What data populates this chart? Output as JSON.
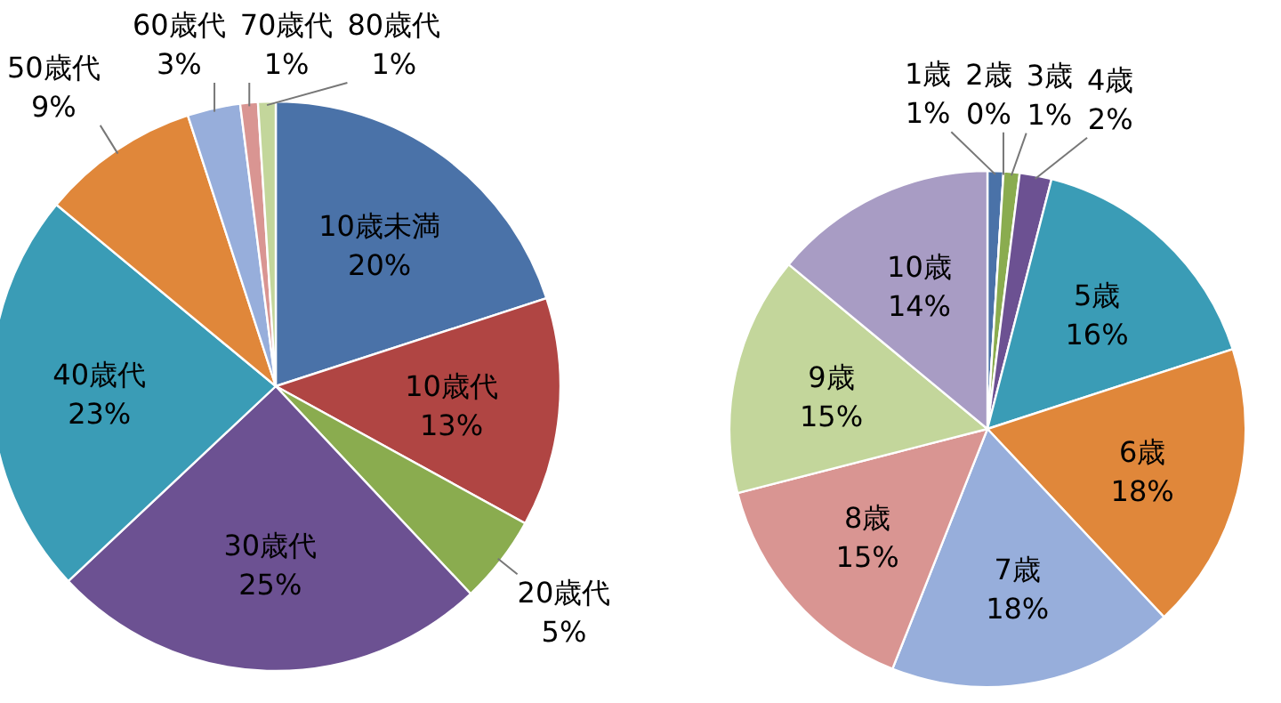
{
  "chart_data": [
    {
      "type": "pie",
      "categories": [
        "10歳未満",
        "10歳代",
        "20歳代",
        "30歳代",
        "40歳代",
        "50歳代",
        "60歳代",
        "70歳代",
        "80歳代"
      ],
      "values": [
        20,
        13,
        5,
        25,
        23,
        9,
        3,
        1,
        1
      ],
      "colors": [
        "#4a72a8",
        "#b04543",
        "#8aac4f",
        "#6c5192",
        "#3a9cb6",
        "#e0873a",
        "#97aedb",
        "#d99592",
        "#c3d69b"
      ],
      "value_labels": [
        "20%",
        "13%",
        "5%",
        "25%",
        "23%",
        "9%",
        "3%",
        "1%",
        "1%"
      ]
    },
    {
      "type": "pie",
      "categories": [
        "1歳",
        "2歳",
        "3歳",
        "4歳",
        "5歳",
        "6歳",
        "7歳",
        "8歳",
        "9歳",
        "10歳"
      ],
      "values": [
        1,
        0,
        1,
        2,
        16,
        18,
        18,
        15,
        15,
        14
      ],
      "colors": [
        "#4a72a8",
        "#b04543",
        "#8aac4f",
        "#6c5192",
        "#3a9cb6",
        "#e0873a",
        "#97aedb",
        "#d99592",
        "#c3d69b",
        "#a89cc4"
      ],
      "value_labels": [
        "1%",
        "0%",
        "1%",
        "2%",
        "16%",
        "18%",
        "18%",
        "15%",
        "15%",
        "14%"
      ]
    }
  ]
}
